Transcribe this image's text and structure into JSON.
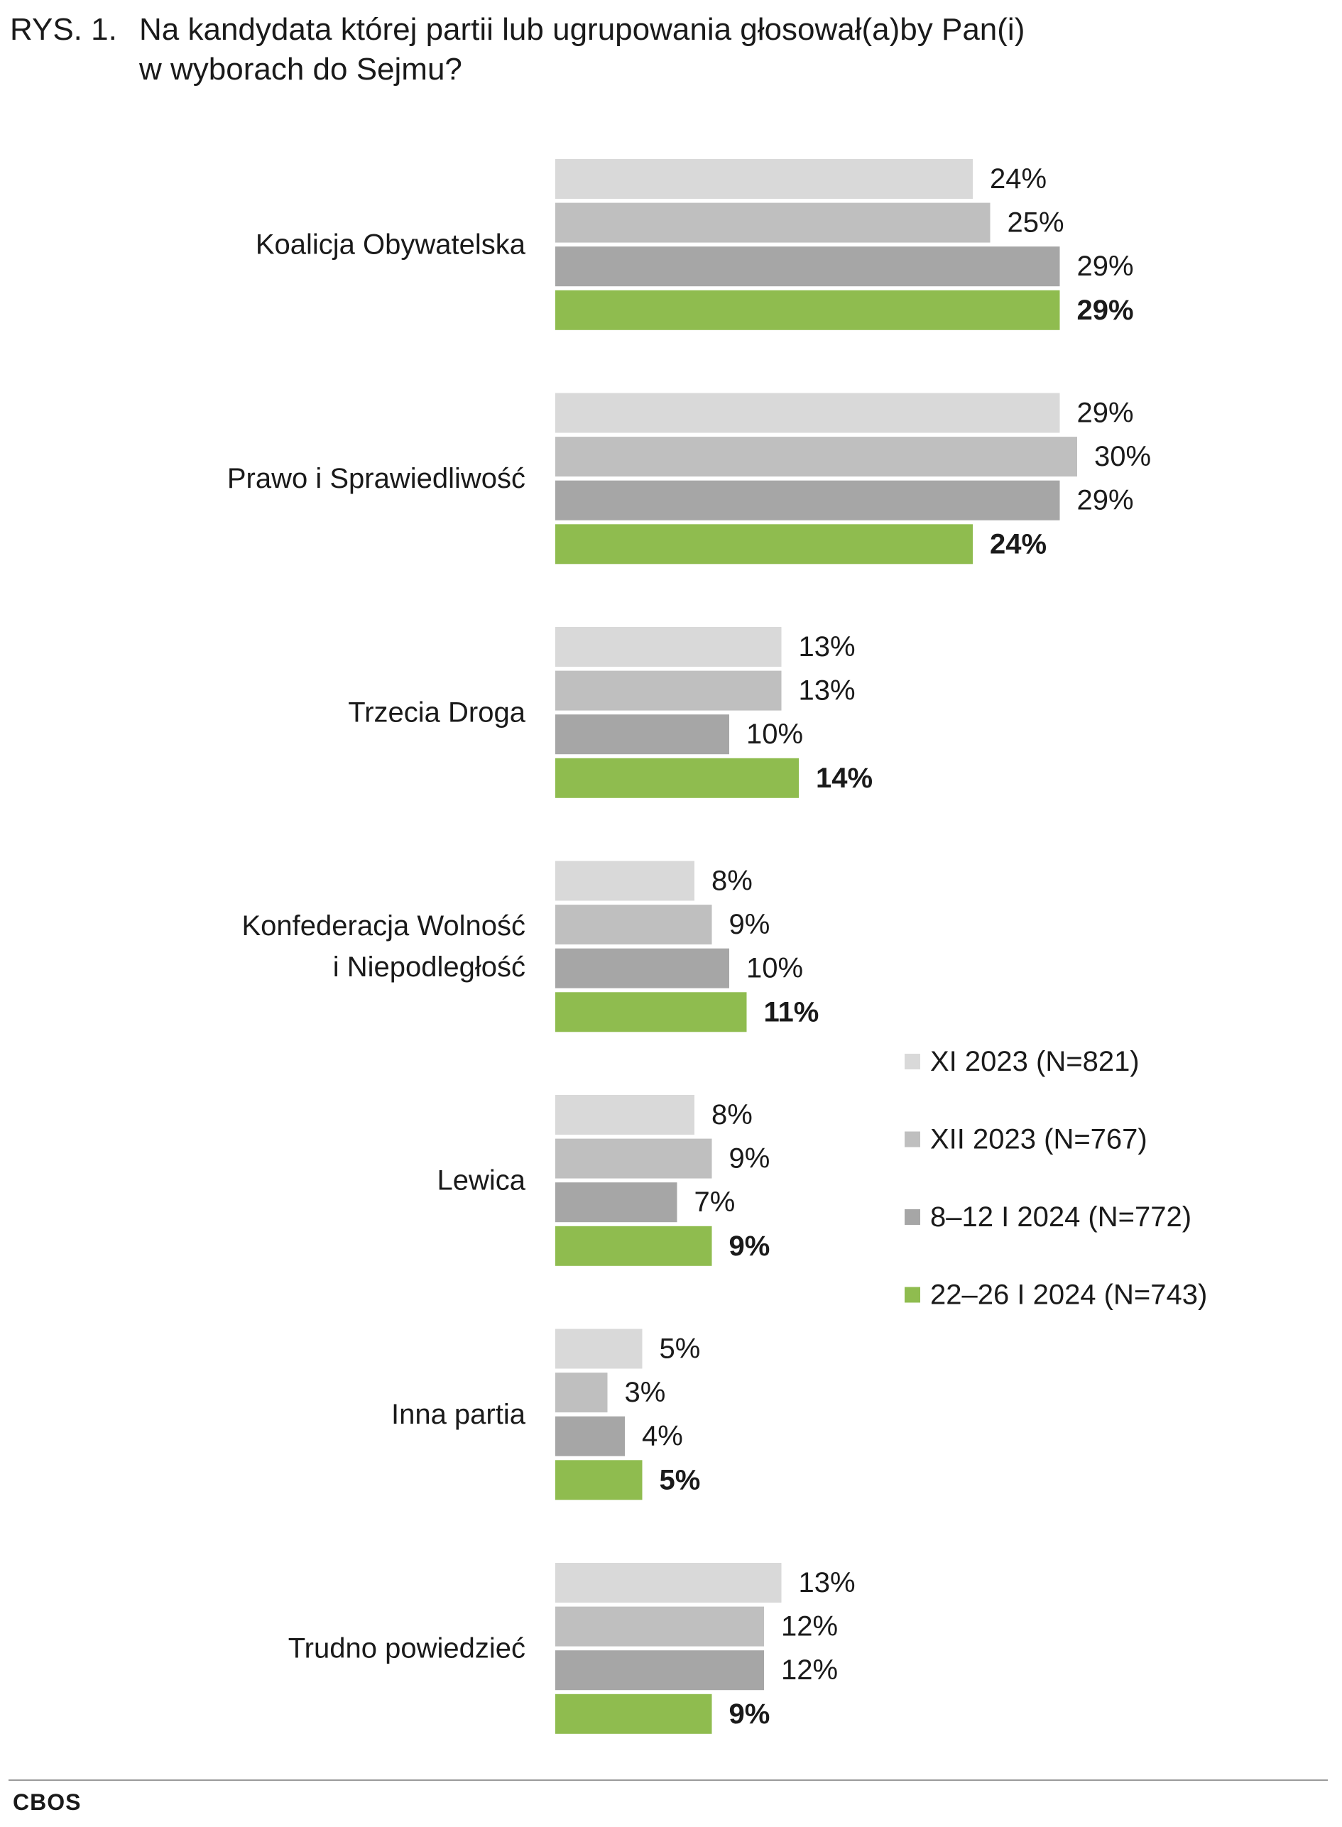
{
  "figure": {
    "number": "RYS. 1.",
    "title": "Na kandydata której partii lub ugrupowania głosował(a)by Pan(i)\nw wyborach do Sejmu?"
  },
  "source": "CBOS",
  "colors": {
    "series": [
      "#d9d9d9",
      "#bfbfbf",
      "#a6a6a6",
      "#8fbc4f"
    ],
    "text": "#1a1a1a",
    "rule": "#9a9a9a"
  },
  "chart_data": {
    "type": "bar",
    "orientation": "horizontal",
    "title": "Na kandydata której partii lub ugrupowania głosował(a)by Pan(i) w wyborach do Sejmu?",
    "xlabel": "",
    "ylabel": "",
    "xlim": [
      0,
      30
    ],
    "grid": false,
    "legend_position": "right",
    "value_suffix": "%",
    "categories": [
      "Koalicja Obywatelska",
      "Prawo i Sprawiedliwość",
      "Trzecia Droga",
      "Konfederacja Wolność\ni Niepodległość",
      "Lewica",
      "Inna partia",
      "Trudno powiedzieć"
    ],
    "series": [
      {
        "name": "XI 2023 (N=821)",
        "values": [
          24,
          29,
          13,
          8,
          8,
          5,
          13
        ],
        "bold_labels": false
      },
      {
        "name": "XII 2023 (N=767)",
        "values": [
          25,
          30,
          13,
          9,
          9,
          3,
          12
        ],
        "bold_labels": false
      },
      {
        "name": "8–12 I 2024 (N=772)",
        "values": [
          29,
          29,
          10,
          10,
          7,
          4,
          12
        ],
        "bold_labels": false
      },
      {
        "name": "22–26 I 2024 (N=743)",
        "values": [
          29,
          24,
          14,
          11,
          9,
          5,
          9
        ],
        "bold_labels": true
      }
    ]
  }
}
